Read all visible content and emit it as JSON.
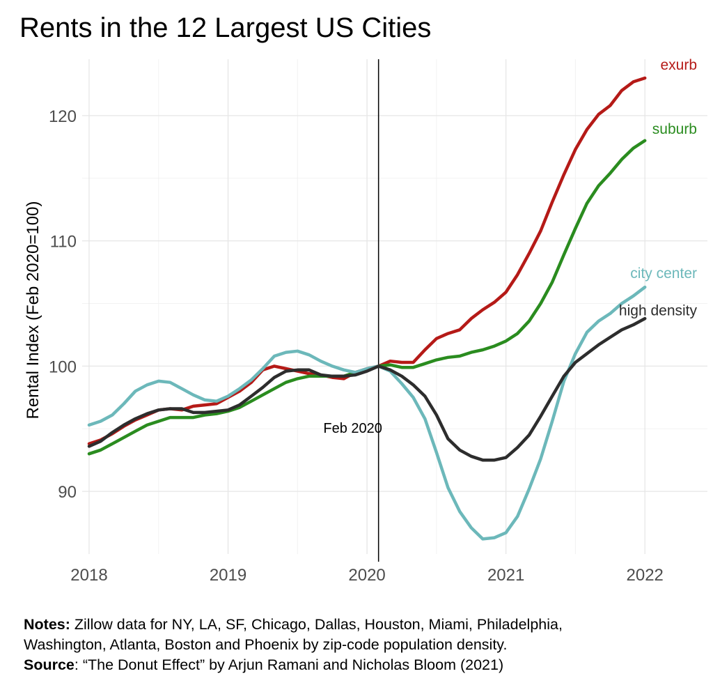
{
  "chart_data": {
    "type": "line",
    "title": "Rents in the 12 Largest US Cities",
    "ylabel": "Rental Index (Feb 2020=100)",
    "xlabel": "",
    "xlim": [
      2017.95,
      2022.45
    ],
    "ylim": [
      85,
      124.5
    ],
    "x_ticks": [
      2018,
      2019,
      2020,
      2021,
      2022
    ],
    "x_tick_labels": [
      "2018",
      "2019",
      "2020",
      "2021",
      "2022"
    ],
    "y_ticks": [
      90,
      100,
      110,
      120
    ],
    "y_tick_labels": [
      "90",
      "100",
      "110",
      "120"
    ],
    "grid": true,
    "legend": "direct labels at line ends",
    "annotation": {
      "x": 2020.083,
      "label": "Feb 2020"
    },
    "series": [
      {
        "name": "exurb",
        "color": "#b51a17",
        "x": [
          2018.0,
          2018.083,
          2018.167,
          2018.25,
          2018.333,
          2018.417,
          2018.5,
          2018.583,
          2018.667,
          2018.75,
          2018.833,
          2018.917,
          2019.0,
          2019.083,
          2019.167,
          2019.25,
          2019.333,
          2019.417,
          2019.5,
          2019.583,
          2019.667,
          2019.75,
          2019.833,
          2019.917,
          2020.0,
          2020.083,
          2020.167,
          2020.25,
          2020.333,
          2020.417,
          2020.5,
          2020.583,
          2020.667,
          2020.75,
          2020.833,
          2020.917,
          2021.0,
          2021.083,
          2021.167,
          2021.25,
          2021.333,
          2021.417,
          2021.5,
          2021.583,
          2021.667,
          2021.75,
          2021.833,
          2021.917,
          2022.0
        ],
        "y": [
          93.8,
          94.1,
          94.6,
          95.2,
          95.7,
          96.1,
          96.5,
          96.6,
          96.5,
          96.8,
          96.9,
          97.0,
          97.5,
          98.0,
          98.7,
          99.7,
          100.0,
          99.8,
          99.6,
          99.4,
          99.3,
          99.1,
          99.0,
          99.5,
          99.8,
          100.0,
          100.4,
          100.3,
          100.3,
          101.3,
          102.2,
          102.6,
          102.9,
          103.8,
          104.5,
          105.1,
          105.9,
          107.3,
          109.0,
          110.8,
          113.1,
          115.3,
          117.3,
          118.9,
          120.1,
          120.8,
          122.0,
          122.7,
          123.0
        ]
      },
      {
        "name": "suburb",
        "color": "#2a8c1f",
        "x": [
          2018.0,
          2018.083,
          2018.167,
          2018.25,
          2018.333,
          2018.417,
          2018.5,
          2018.583,
          2018.667,
          2018.75,
          2018.833,
          2018.917,
          2019.0,
          2019.083,
          2019.167,
          2019.25,
          2019.333,
          2019.417,
          2019.5,
          2019.583,
          2019.667,
          2019.75,
          2019.833,
          2019.917,
          2020.0,
          2020.083,
          2020.167,
          2020.25,
          2020.333,
          2020.417,
          2020.5,
          2020.583,
          2020.667,
          2020.75,
          2020.833,
          2020.917,
          2021.0,
          2021.083,
          2021.167,
          2021.25,
          2021.333,
          2021.417,
          2021.5,
          2021.583,
          2021.667,
          2021.75,
          2021.833,
          2021.917,
          2022.0
        ],
        "y": [
          93.0,
          93.3,
          93.8,
          94.3,
          94.8,
          95.3,
          95.6,
          95.9,
          95.9,
          95.9,
          96.1,
          96.2,
          96.4,
          96.7,
          97.2,
          97.7,
          98.2,
          98.7,
          99.0,
          99.2,
          99.2,
          99.2,
          99.2,
          99.5,
          99.7,
          100.0,
          100.1,
          99.9,
          99.9,
          100.2,
          100.5,
          100.7,
          100.8,
          101.1,
          101.3,
          101.6,
          102.0,
          102.6,
          103.6,
          105.0,
          106.7,
          108.9,
          111.0,
          113.0,
          114.4,
          115.4,
          116.5,
          117.4,
          118.0
        ]
      },
      {
        "name": "city center",
        "color": "#6cb8ba",
        "x": [
          2018.0,
          2018.083,
          2018.167,
          2018.25,
          2018.333,
          2018.417,
          2018.5,
          2018.583,
          2018.667,
          2018.75,
          2018.833,
          2018.917,
          2019.0,
          2019.083,
          2019.167,
          2019.25,
          2019.333,
          2019.417,
          2019.5,
          2019.583,
          2019.667,
          2019.75,
          2019.833,
          2019.917,
          2020.0,
          2020.083,
          2020.167,
          2020.25,
          2020.333,
          2020.417,
          2020.5,
          2020.583,
          2020.667,
          2020.75,
          2020.833,
          2020.917,
          2021.0,
          2021.083,
          2021.167,
          2021.25,
          2021.333,
          2021.417,
          2021.5,
          2021.583,
          2021.667,
          2021.75,
          2021.833,
          2021.917,
          2022.0
        ],
        "y": [
          95.3,
          95.6,
          96.1,
          97.0,
          98.0,
          98.5,
          98.8,
          98.7,
          98.2,
          97.7,
          97.3,
          97.2,
          97.6,
          98.2,
          98.9,
          99.8,
          100.8,
          101.1,
          101.2,
          100.9,
          100.4,
          100.0,
          99.7,
          99.5,
          99.8,
          100.0,
          99.6,
          98.6,
          97.5,
          95.8,
          93.1,
          90.3,
          88.4,
          87.1,
          86.2,
          86.3,
          86.7,
          88.0,
          90.2,
          92.6,
          95.6,
          98.8,
          101.0,
          102.7,
          103.6,
          104.2,
          105.0,
          105.6,
          106.3
        ]
      },
      {
        "name": "high density",
        "color": "#2d2d2d",
        "x": [
          2018.0,
          2018.083,
          2018.167,
          2018.25,
          2018.333,
          2018.417,
          2018.5,
          2018.583,
          2018.667,
          2018.75,
          2018.833,
          2018.917,
          2019.0,
          2019.083,
          2019.167,
          2019.25,
          2019.333,
          2019.417,
          2019.5,
          2019.583,
          2019.667,
          2019.75,
          2019.833,
          2019.917,
          2020.0,
          2020.083,
          2020.167,
          2020.25,
          2020.333,
          2020.417,
          2020.5,
          2020.583,
          2020.667,
          2020.75,
          2020.833,
          2020.917,
          2021.0,
          2021.083,
          2021.167,
          2021.25,
          2021.333,
          2021.417,
          2021.5,
          2021.583,
          2021.667,
          2021.75,
          2021.833,
          2021.917,
          2022.0
        ],
        "y": [
          93.6,
          94.0,
          94.7,
          95.3,
          95.8,
          96.2,
          96.5,
          96.6,
          96.6,
          96.3,
          96.3,
          96.4,
          96.5,
          96.9,
          97.6,
          98.3,
          99.1,
          99.6,
          99.7,
          99.7,
          99.3,
          99.2,
          99.2,
          99.3,
          99.6,
          100.0,
          99.7,
          99.2,
          98.5,
          97.6,
          96.1,
          94.2,
          93.3,
          92.8,
          92.5,
          92.5,
          92.7,
          93.5,
          94.5,
          96.0,
          97.6,
          99.2,
          100.3,
          101.0,
          101.7,
          102.3,
          102.9,
          103.3,
          103.8
        ]
      }
    ]
  },
  "notes": {
    "notes_label": "Notes:",
    "notes_line1": " Zillow data for NY, LA, SF, Chicago, Dallas, Houston, Miami, Philadelphia,",
    "notes_line2": "Washington, Atlanta, Boston and Phoenix by zip-code population density.",
    "source_label": "Source",
    "source_text": ": “The Donut Effect” by Arjun Ramani and Nicholas Bloom (2021)"
  }
}
